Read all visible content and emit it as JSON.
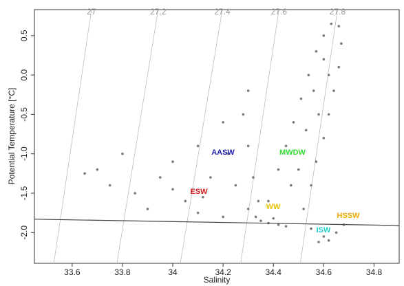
{
  "chart_data": {
    "type": "scatter",
    "x_label": "Salinity",
    "y_label": "Potential Temperature [°C]",
    "xlim": [
      33.45,
      34.9
    ],
    "ylim": [
      -2.39,
      0.83
    ],
    "xticks": [
      33.6,
      33.8,
      34,
      34.2,
      34.4,
      34.6,
      34.8
    ],
    "yticks": [
      0.5,
      {
        "value": 0,
        "label": "0.0"
      },
      -0.5,
      {
        "value": -1,
        "label": "-1.0"
      },
      -1.5,
      {
        "value": -2,
        "label": "-2.0"
      }
    ],
    "color": "#7a7a7a",
    "x": [
      34.38,
      34.42,
      34.45,
      34.48,
      34.51,
      34.54,
      34.57,
      34.6,
      34.63,
      34.66,
      34.67,
      34.66,
      34.64,
      34.62,
      34.6,
      34.57,
      34.55,
      34.52,
      34.5,
      34.53,
      34.56,
      34.6,
      34.47,
      34.58,
      34.62,
      34.3,
      34.28,
      34.3,
      34.32,
      34.34,
      34.2,
      34.22,
      34.1,
      34.15,
      34.25,
      34.3,
      33.7,
      33.8,
      33.85,
      33.95,
      34.0,
      34.05,
      33.9,
      34.1,
      34.2,
      33.75,
      33.65,
      34.0,
      34.12,
      34.55,
      34.6,
      34.62,
      34.65,
      34.58,
      34.45,
      34.68,
      34.35,
      34.38,
      34.4,
      34.33,
      34.42
    ],
    "y": [
      -1.6,
      -1.2,
      -0.9,
      -0.6,
      -0.3,
      0,
      0.3,
      0.5,
      0.65,
      0.62,
      0.4,
      0.1,
      -0.2,
      -0.5,
      -0.8,
      -1.1,
      -1.4,
      -1.7,
      -1.2,
      -0.7,
      -0.2,
      0.2,
      -1.4,
      -0.5,
      0,
      -0.2,
      -0.5,
      -0.9,
      -1.3,
      -1.6,
      -0.6,
      -1.0,
      -0.9,
      -1.3,
      -1.4,
      -1.7,
      -1.2,
      -1.0,
      -1.5,
      -1.3,
      -1.1,
      -1.6,
      -1.7,
      -1.75,
      -1.8,
      -1.4,
      -1.25,
      -1.45,
      -1.55,
      -1.95,
      -2.05,
      -2.1,
      -2.0,
      -2.12,
      -1.92,
      -1.9,
      -1.85,
      -1.88,
      -1.82,
      -1.8,
      -1.9
    ],
    "isopycnals": [
      {
        "label": 27,
        "salinity": [
          33.677,
          33.527
        ]
      },
      {
        "label": 27.2,
        "salinity": [
          33.942,
          33.778
        ]
      },
      {
        "label": 27.4,
        "salinity": [
          34.197,
          34.03
        ]
      },
      {
        "label": 27.6,
        "salinity": [
          34.422,
          34.27
        ]
      },
      {
        "label": 27.8,
        "salinity": [
          34.655,
          34.507
        ]
      }
    ],
    "freezing_line": {
      "x": [
        33.45,
        34.9
      ],
      "y": [
        -1.83,
        -1.91
      ]
    },
    "annotations": [
      {
        "text": "AASW",
        "color": "#1a1ab0"
      },
      {
        "text": "ESW",
        "color": "#d11a1a"
      },
      {
        "text": "MWDW",
        "color": "#33dd33"
      },
      {
        "text": "WW",
        "color": "#e6c200"
      },
      {
        "text": "HSSW",
        "color": "#f0a800"
      },
      {
        "text": "ISW",
        "color": "#22cccc"
      }
    ]
  }
}
